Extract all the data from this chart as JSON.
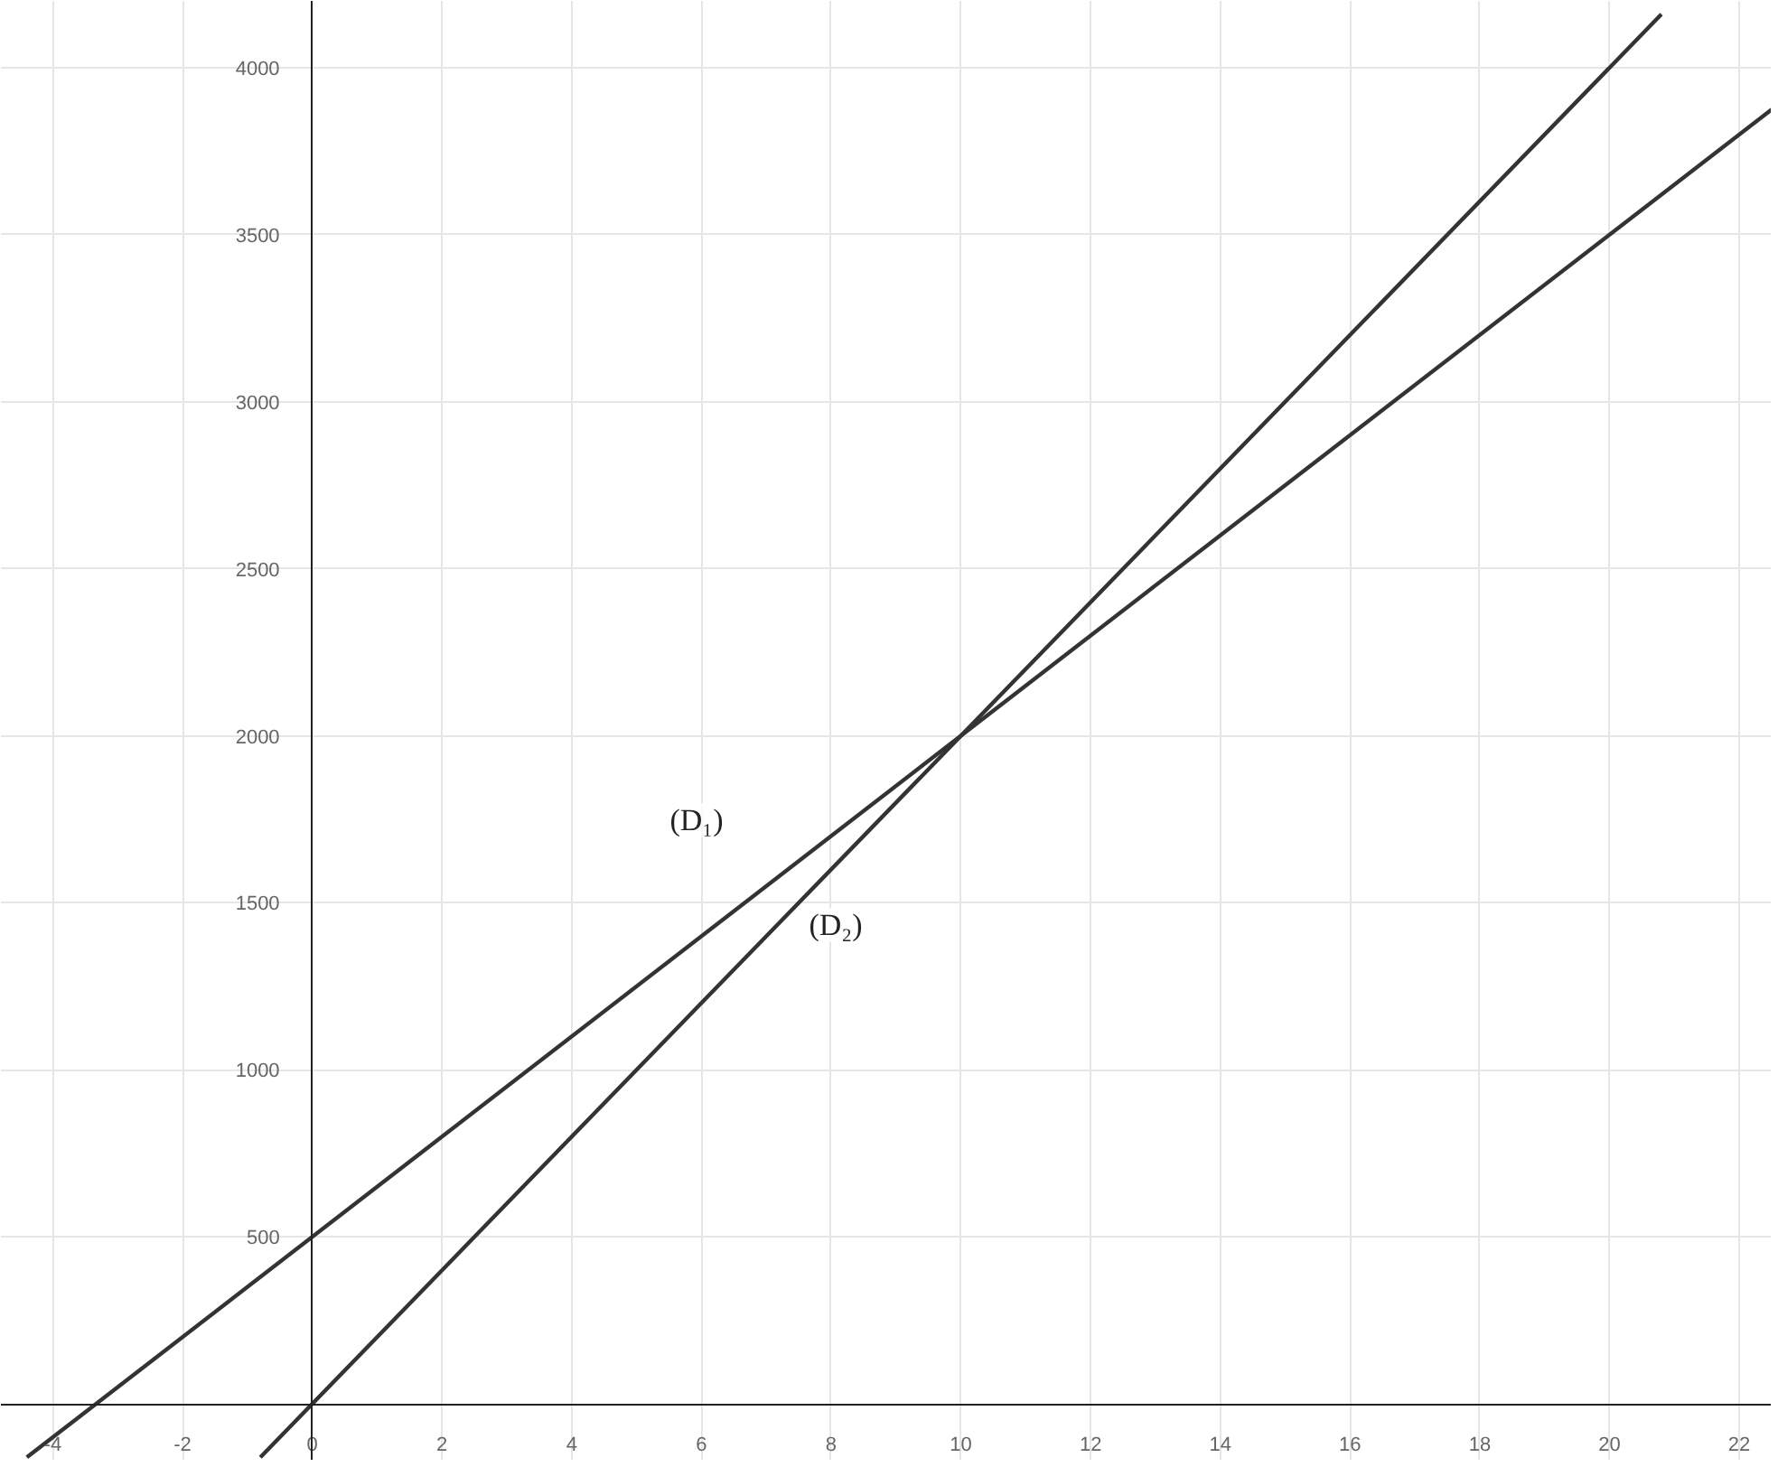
{
  "chart_data": {
    "type": "line",
    "xlim": [
      -4.8,
      22.5
    ],
    "ylim": [
      -170,
      4200
    ],
    "xticks": [
      -4,
      -2,
      0,
      2,
      4,
      6,
      8,
      10,
      12,
      14,
      16,
      18,
      20,
      22
    ],
    "yticks": [
      500,
      1000,
      1500,
      2000,
      2500,
      3000,
      3500,
      4000
    ],
    "grid": true,
    "marker": "none",
    "line_style": "solid",
    "series": [
      {
        "color": "#333333",
        "x": [
          -4.4,
          22.5
        ],
        "values": [
          -160,
          3875
        ]
      },
      {
        "color": "#333333",
        "x": [
          -0.8,
          20.8
        ],
        "values": [
          -160,
          4160
        ]
      }
    ],
    "annotations": [
      "(D₁)",
      "(D₂)"
    ]
  }
}
